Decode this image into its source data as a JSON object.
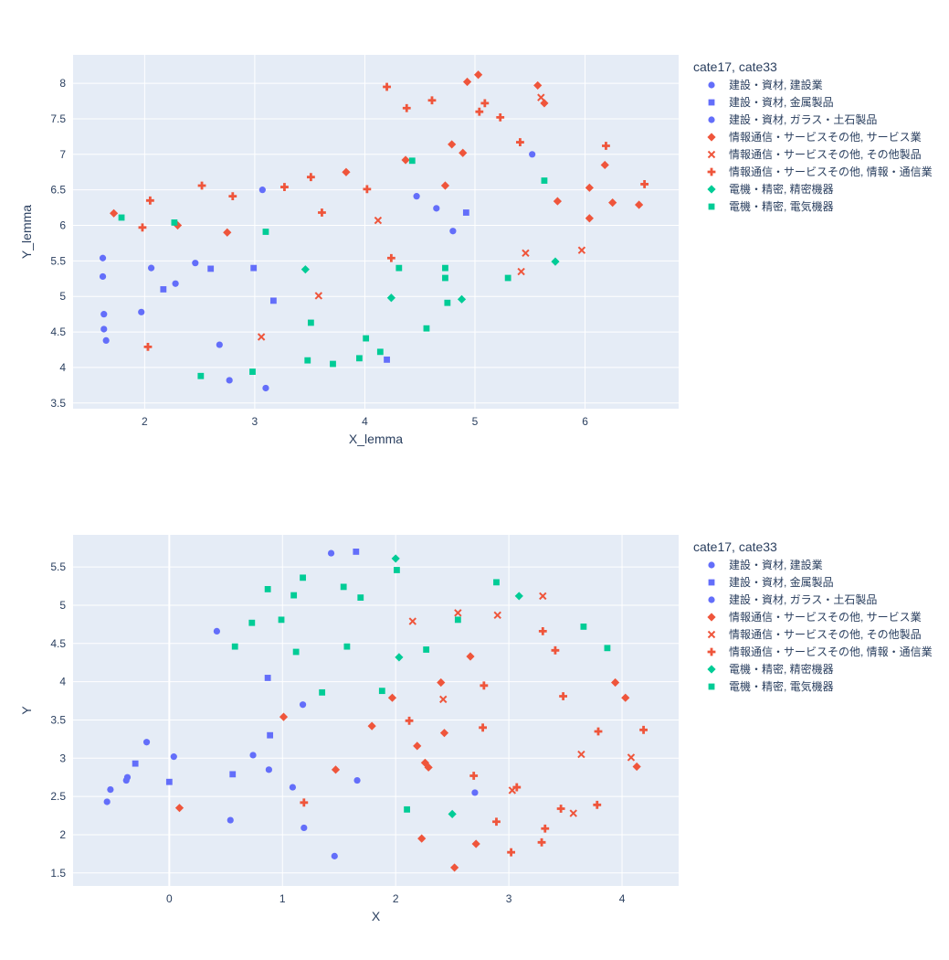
{
  "chart_data": [
    {
      "type": "scatter",
      "title": "",
      "xlabel": "X_lemma",
      "ylabel": "Y_lemma",
      "xlim": [
        1.35,
        6.85
      ],
      "ylim": [
        3.42,
        8.4
      ],
      "xticks": [
        2,
        3,
        4,
        5,
        6
      ],
      "yticks": [
        3.5,
        4,
        4.5,
        5,
        5.5,
        6,
        6.5,
        7,
        7.5,
        8
      ],
      "grid": true,
      "legend_placement": "top-right, outside plot",
      "legend_title": "cate17, cate33",
      "series": [
        {
          "name": "建設・資材, 建設業",
          "symbol": "circle",
          "color": "#636efa",
          "points": [
            [
              1.62,
              5.54
            ],
            [
              1.62,
              5.28
            ],
            [
              1.63,
              4.75
            ],
            [
              1.63,
              4.54
            ],
            [
              1.65,
              4.38
            ],
            [
              2.06,
              5.4
            ],
            [
              1.97,
              4.78
            ],
            [
              2.28,
              5.18
            ],
            [
              2.46,
              5.47
            ],
            [
              2.68,
              4.32
            ],
            [
              2.77,
              3.82
            ],
            [
              3.07,
              6.5
            ],
            [
              3.1,
              3.71
            ],
            [
              4.47,
              6.41
            ],
            [
              4.65,
              6.24
            ],
            [
              4.8,
              5.92
            ],
            [
              5.52,
              7.0
            ]
          ]
        },
        {
          "name": "建設・資材, 金属製品",
          "symbol": "square",
          "color": "#636efa",
          "points": [
            [
              2.17,
              5.1
            ],
            [
              2.6,
              5.39
            ],
            [
              2.99,
              5.4
            ],
            [
              3.17,
              4.94
            ],
            [
              4.2,
              4.11
            ],
            [
              4.92,
              6.18
            ]
          ]
        },
        {
          "name": "建設・資材, ガラス・土石製品",
          "symbol": "circle",
          "color": "#636efa",
          "points": []
        },
        {
          "name": "情報通信・サービスその他, サービス業",
          "symbol": "diamond",
          "color": "#ef553b",
          "points": [
            [
              1.72,
              6.17
            ],
            [
              2.3,
              6.0
            ],
            [
              2.75,
              5.9
            ],
            [
              3.83,
              6.75
            ],
            [
              4.37,
              6.92
            ],
            [
              4.73,
              6.56
            ],
            [
              4.79,
              7.14
            ],
            [
              4.89,
              7.02
            ],
            [
              4.93,
              8.02
            ],
            [
              5.03,
              8.12
            ],
            [
              5.57,
              7.97
            ],
            [
              5.63,
              7.72
            ],
            [
              5.75,
              6.34
            ],
            [
              6.04,
              6.53
            ],
            [
              6.04,
              6.1
            ],
            [
              6.18,
              6.85
            ],
            [
              6.25,
              6.32
            ],
            [
              6.49,
              6.29
            ]
          ]
        },
        {
          "name": "情報通信・サービスその他, その他製品",
          "symbol": "x",
          "color": "#ef553b",
          "points": [
            [
              3.06,
              4.43
            ],
            [
              3.58,
              5.01
            ],
            [
              4.12,
              6.07
            ],
            [
              5.42,
              5.35
            ],
            [
              5.46,
              5.61
            ],
            [
              5.6,
              7.8
            ],
            [
              5.97,
              5.65
            ]
          ]
        },
        {
          "name": "情報通信・サービスその他, 情報・通信業",
          "symbol": "cross",
          "color": "#ef553b",
          "points": [
            [
              1.98,
              5.97
            ],
            [
              2.03,
              4.29
            ],
            [
              2.05,
              6.35
            ],
            [
              2.52,
              6.56
            ],
            [
              2.8,
              6.41
            ],
            [
              3.27,
              6.54
            ],
            [
              3.51,
              6.68
            ],
            [
              3.61,
              6.18
            ],
            [
              4.02,
              6.51
            ],
            [
              4.2,
              7.95
            ],
            [
              4.24,
              5.54
            ],
            [
              4.38,
              7.65
            ],
            [
              4.61,
              7.76
            ],
            [
              5.04,
              7.6
            ],
            [
              5.09,
              7.72
            ],
            [
              5.23,
              7.52
            ],
            [
              5.41,
              7.17
            ],
            [
              6.19,
              7.12
            ],
            [
              6.54,
              6.58
            ]
          ]
        },
        {
          "name": "電機・精密, 精密機器",
          "symbol": "diamond",
          "color": "#00cc96",
          "points": [
            [
              3.46,
              5.38
            ],
            [
              4.24,
              4.98
            ],
            [
              4.88,
              4.96
            ],
            [
              5.73,
              5.49
            ]
          ]
        },
        {
          "name": "電機・精密, 電気機器",
          "symbol": "square",
          "color": "#00cc96",
          "points": [
            [
              1.79,
              6.11
            ],
            [
              2.27,
              6.04
            ],
            [
              2.51,
              3.88
            ],
            [
              2.98,
              3.94
            ],
            [
              3.1,
              5.91
            ],
            [
              3.48,
              4.1
            ],
            [
              3.51,
              4.63
            ],
            [
              3.71,
              4.05
            ],
            [
              3.95,
              4.13
            ],
            [
              4.01,
              4.41
            ],
            [
              4.14,
              4.22
            ],
            [
              4.31,
              5.4
            ],
            [
              4.43,
              6.91
            ],
            [
              4.56,
              4.55
            ],
            [
              4.73,
              5.4
            ],
            [
              4.73,
              5.26
            ],
            [
              4.75,
              4.91
            ],
            [
              5.3,
              5.26
            ],
            [
              5.63,
              6.63
            ]
          ]
        }
      ]
    },
    {
      "type": "scatter",
      "title": "",
      "xlabel": "X",
      "ylabel": "Y",
      "xlim": [
        -0.85,
        4.5
      ],
      "ylim": [
        1.33,
        5.92
      ],
      "xticks": [
        0,
        1,
        2,
        3,
        4
      ],
      "yticks": [
        1.5,
        2,
        2.5,
        3,
        3.5,
        4,
        4.5,
        5,
        5.5
      ],
      "grid": true,
      "zero_line_x": true,
      "legend_placement": "top-right, outside plot",
      "legend_title": "cate17, cate33",
      "series": [
        {
          "name": "建設・資材, 建設業",
          "symbol": "circle",
          "color": "#636efa",
          "points": [
            [
              -0.55,
              2.43
            ],
            [
              -0.52,
              2.59
            ],
            [
              -0.38,
              2.71
            ],
            [
              -0.37,
              2.75
            ],
            [
              -0.2,
              3.21
            ],
            [
              0.04,
              3.02
            ],
            [
              0.42,
              4.66
            ],
            [
              0.54,
              2.19
            ],
            [
              0.74,
              3.04
            ],
            [
              0.88,
              2.85
            ],
            [
              1.09,
              2.62
            ],
            [
              1.18,
              3.7
            ],
            [
              1.19,
              2.09
            ],
            [
              1.43,
              5.68
            ],
            [
              1.46,
              1.72
            ],
            [
              1.66,
              2.71
            ],
            [
              2.7,
              2.55
            ]
          ]
        },
        {
          "name": "建設・資材, 金属製品",
          "symbol": "square",
          "color": "#636efa",
          "points": [
            [
              -0.3,
              2.93
            ],
            [
              0.0,
              2.69
            ],
            [
              0.56,
              2.79
            ],
            [
              0.87,
              4.05
            ],
            [
              0.89,
              3.3
            ],
            [
              1.65,
              5.7
            ]
          ]
        },
        {
          "name": "建設・資材, ガラス・土石製品",
          "symbol": "circle",
          "color": "#636efa",
          "points": []
        },
        {
          "name": "情報通信・サービスその他, サービス業",
          "symbol": "diamond",
          "color": "#ef553b",
          "points": [
            [
              0.09,
              2.35
            ],
            [
              1.01,
              3.54
            ],
            [
              1.47,
              2.85
            ],
            [
              1.79,
              3.42
            ],
            [
              1.97,
              3.79
            ],
            [
              2.19,
              3.16
            ],
            [
              2.23,
              1.95
            ],
            [
              2.26,
              2.94
            ],
            [
              2.29,
              2.88
            ],
            [
              2.4,
              3.99
            ],
            [
              2.43,
              3.33
            ],
            [
              2.52,
              1.57
            ],
            [
              2.66,
              4.33
            ],
            [
              2.71,
              1.88
            ],
            [
              3.94,
              3.99
            ],
            [
              4.03,
              3.79
            ],
            [
              4.13,
              2.89
            ]
          ]
        },
        {
          "name": "情報通信・サービスその他, その他製品",
          "symbol": "x",
          "color": "#ef553b",
          "points": [
            [
              2.15,
              4.79
            ],
            [
              2.42,
              3.77
            ],
            [
              2.55,
              4.9
            ],
            [
              2.9,
              4.87
            ],
            [
              3.03,
              2.58
            ],
            [
              3.3,
              5.12
            ],
            [
              3.57,
              2.28
            ],
            [
              3.64,
              3.05
            ],
            [
              4.08,
              3.01
            ]
          ]
        },
        {
          "name": "情報通信・サービスその他, 情報・通信業",
          "symbol": "cross",
          "color": "#ef553b",
          "points": [
            [
              1.19,
              2.42
            ],
            [
              2.12,
              3.49
            ],
            [
              2.69,
              2.77
            ],
            [
              2.77,
              3.4
            ],
            [
              2.78,
              3.95
            ],
            [
              2.89,
              2.17
            ],
            [
              3.02,
              1.77
            ],
            [
              3.07,
              2.62
            ],
            [
              3.29,
              1.9
            ],
            [
              3.3,
              4.66
            ],
            [
              3.32,
              2.08
            ],
            [
              3.41,
              4.41
            ],
            [
              3.46,
              2.34
            ],
            [
              3.48,
              3.81
            ],
            [
              3.78,
              2.39
            ],
            [
              3.79,
              3.35
            ],
            [
              4.19,
              3.37
            ]
          ]
        },
        {
          "name": "電機・精密, 精密機器",
          "symbol": "diamond",
          "color": "#00cc96",
          "points": [
            [
              2.0,
              5.61
            ],
            [
              2.03,
              4.32
            ],
            [
              2.5,
              2.27
            ],
            [
              3.09,
              5.12
            ]
          ]
        },
        {
          "name": "電機・精密, 電気機器",
          "symbol": "square",
          "color": "#00cc96",
          "points": [
            [
              0.58,
              4.46
            ],
            [
              0.73,
              4.77
            ],
            [
              0.87,
              5.21
            ],
            [
              0.99,
              4.81
            ],
            [
              1.1,
              5.13
            ],
            [
              1.12,
              4.39
            ],
            [
              1.18,
              5.36
            ],
            [
              1.35,
              3.86
            ],
            [
              1.54,
              5.24
            ],
            [
              1.57,
              4.46
            ],
            [
              1.69,
              5.1
            ],
            [
              1.88,
              3.88
            ],
            [
              2.01,
              5.46
            ],
            [
              2.1,
              2.33
            ],
            [
              2.27,
              4.42
            ],
            [
              2.55,
              4.81
            ],
            [
              2.89,
              5.3
            ],
            [
              3.66,
              4.72
            ],
            [
              3.87,
              4.44
            ]
          ]
        }
      ]
    }
  ]
}
